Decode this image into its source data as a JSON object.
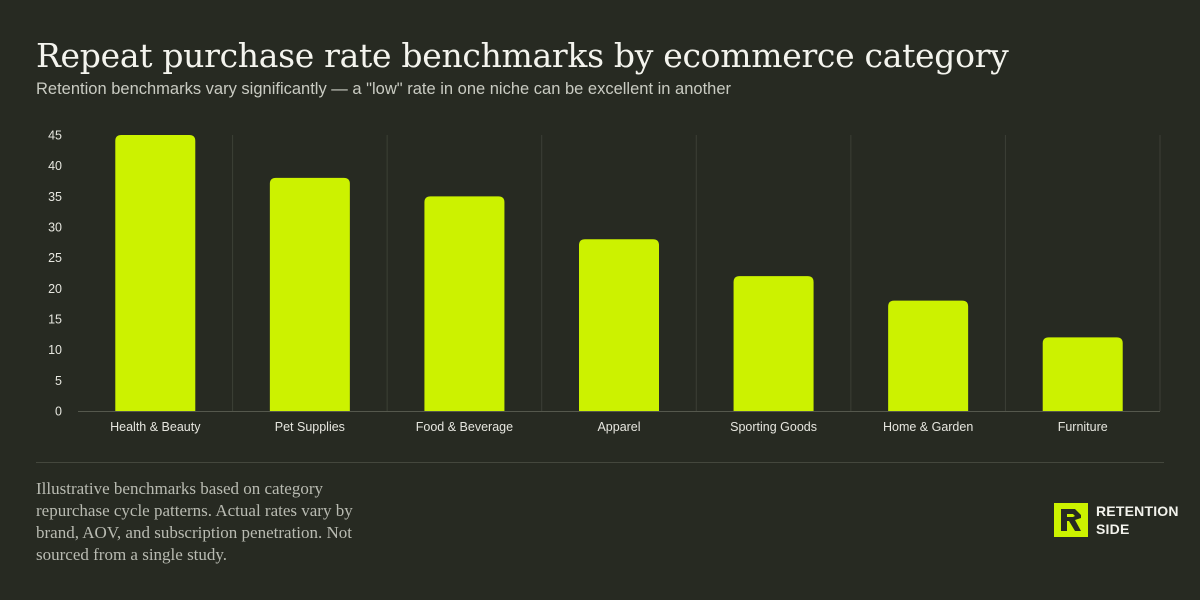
{
  "header": {
    "title": "Repeat purchase rate benchmarks by ecommerce category",
    "subtitle": "Retention benchmarks vary significantly — a \"low\" rate in one niche can be excellent in another"
  },
  "chart_data": {
    "type": "bar",
    "categories": [
      "Health & Beauty",
      "Pet Supplies",
      "Food & Beverage",
      "Apparel",
      "Sporting Goods",
      "Home & Garden",
      "Furniture"
    ],
    "values": [
      45,
      38,
      35,
      28,
      22,
      18,
      12
    ],
    "yticks": [
      "0",
      "5",
      "10",
      "15",
      "20",
      "25",
      "30",
      "35",
      "40",
      "45"
    ],
    "ylim": [
      0,
      45
    ],
    "title": "",
    "xlabel": "",
    "ylabel": "",
    "grid": "vertical category separators",
    "legend": "none",
    "bar_color": "#ccf200"
  },
  "footer": {
    "note": "Illustrative benchmarks based on category repurchase cycle patterns. Actual rates vary by brand, AOV, and subscription penetration. Not sourced from a single study.",
    "brand_line1": "RETENTION",
    "brand_line2": "SIDE"
  },
  "colors": {
    "background": "#272a22",
    "accent": "#ccf200",
    "grid": "#3c3f36",
    "axis": "#55584d"
  }
}
